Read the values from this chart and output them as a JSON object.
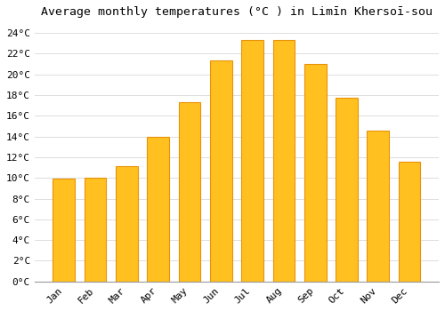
{
  "title": "Average monthly temperatures (°C ) in Limīn Khersoī­sou",
  "months": [
    "Jan",
    "Feb",
    "Mar",
    "Apr",
    "May",
    "Jun",
    "Jul",
    "Aug",
    "Sep",
    "Oct",
    "Nov",
    "Dec"
  ],
  "values": [
    9.9,
    10.0,
    11.1,
    14.0,
    17.3,
    21.3,
    23.3,
    23.3,
    21.0,
    17.7,
    14.6,
    11.6
  ],
  "bar_color": "#FFC020",
  "bar_edge_color": "#E8920A",
  "background_color": "#FFFFFF",
  "plot_bg_color": "#FFFFFF",
  "grid_color": "#DDDDDD",
  "ylim": [
    0,
    25
  ],
  "ytick_step": 2,
  "title_fontsize": 9.5,
  "tick_fontsize": 8,
  "font_family": "monospace"
}
